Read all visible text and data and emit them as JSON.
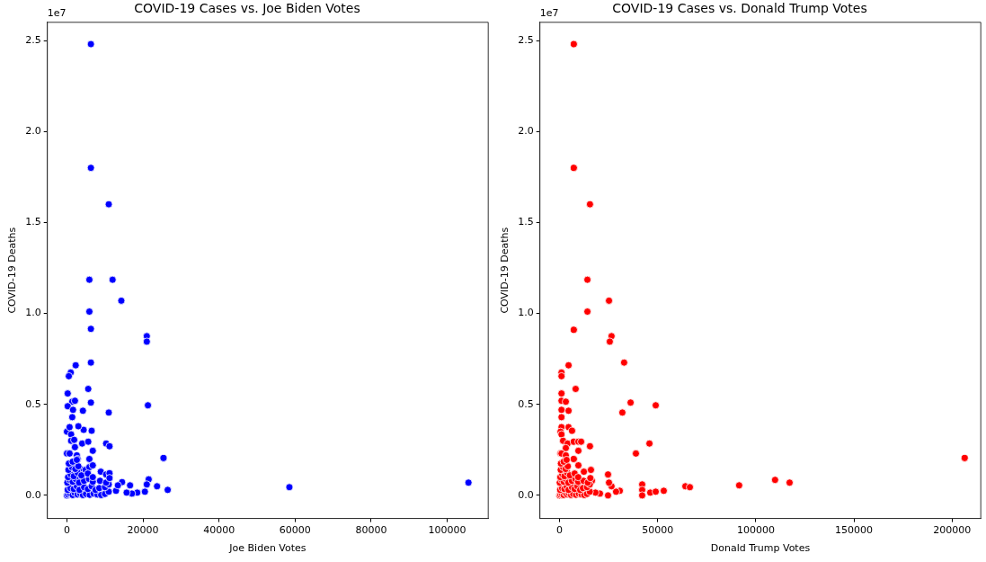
{
  "chart_data": [
    {
      "type": "scatter",
      "title": "COVID-19 Cases vs. Joe Biden Votes",
      "xlabel": "Joe Biden Votes",
      "ylabel": "COVID-19 Deaths",
      "color": "#0000ff",
      "marker": "circle",
      "grid": false,
      "legend": false,
      "annotations": [
        "1e7"
      ],
      "xlim": [
        -5150,
        110800
      ],
      "ylim": [
        -0.127,
        2.6
      ],
      "xticks": [
        0,
        20000,
        40000,
        60000,
        80000,
        100000
      ],
      "yticks": [
        {
          "value": 0,
          "label": "0.0"
        },
        0.5,
        {
          "value": 1,
          "label": "1.0"
        },
        1.5,
        {
          "value": 2,
          "label": "2.0"
        },
        2.5
      ],
      "x": [
        6300,
        6300,
        11000,
        5900,
        12000,
        14300,
        5900,
        6300,
        21000,
        21000,
        6300,
        2300,
        1000,
        500,
        5600,
        200,
        1400,
        2100,
        6300,
        21300,
        200,
        1600,
        4200,
        11000,
        1400,
        6500,
        4400,
        3000,
        0,
        700,
        1100,
        1100,
        1900,
        2100,
        4000,
        5600,
        6800,
        10300,
        11200,
        25400,
        5900,
        0,
        700,
        2600,
        2800,
        3500,
        4900,
        5900,
        6800,
        8900,
        10300,
        11200,
        21500,
        21000,
        23700,
        26500,
        58500,
        105600,
        18500,
        17100,
        15700,
        14500,
        16600,
        12900,
        13400,
        20500,
        0,
        300,
        800,
        1500,
        2000,
        2800,
        3500,
        4200,
        5000,
        6000,
        7000,
        8000,
        9000,
        10000,
        11000,
        200,
        900,
        1800,
        2600,
        3300,
        4500,
        5500,
        6500,
        7500,
        8500,
        10000,
        11000,
        100,
        700,
        1500,
        2300,
        3200,
        4500,
        5800,
        6800,
        8700,
        10300,
        11200,
        300,
        1000,
        1800,
        2800,
        3800,
        5500,
        6800,
        400,
        1300,
        2200,
        3000,
        500,
        1500,
        2600
      ],
      "values": [
        2.48,
        1.8,
        1.6,
        1.185,
        1.185,
        1.07,
        1.01,
        0.915,
        0.875,
        0.845,
        0.73,
        0.715,
        0.675,
        0.655,
        0.585,
        0.56,
        0.515,
        0.52,
        0.51,
        0.495,
        0.49,
        0.47,
        0.465,
        0.455,
        0.43,
        0.355,
        0.36,
        0.38,
        0.35,
        0.375,
        0.335,
        0.3,
        0.305,
        0.265,
        0.285,
        0.295,
        0.245,
        0.285,
        0.27,
        0.205,
        0.2,
        0.23,
        0.23,
        0.22,
        0.2,
        0.145,
        0.14,
        0.155,
        0.165,
        0.13,
        0.115,
        0.122,
        0.088,
        0.06,
        0.05,
        0.03,
        0.045,
        0.07,
        0.015,
        0.01,
        0.015,
        0.073,
        0.055,
        0.025,
        0.055,
        0.02,
        0,
        0.005,
        0.01,
        0.002,
        0.015,
        0.005,
        0.01,
        0.002,
        0.008,
        0.003,
        0.01,
        0.005,
        0.002,
        0.008,
        0.02,
        0.03,
        0.04,
        0.035,
        0.05,
        0.03,
        0.045,
        0.035,
        0.05,
        0.03,
        0.04,
        0.045,
        0.06,
        0.07,
        0.085,
        0.075,
        0.09,
        0.07,
        0.08,
        0.09,
        0.075,
        0.08,
        0.07,
        0.095,
        0.1,
        0.115,
        0.105,
        0.125,
        0.11,
        0.12,
        0.1,
        0.14,
        0.155,
        0.145,
        0.16,
        0.175,
        0.185,
        0.195
      ]
    },
    {
      "type": "scatter",
      "title": "COVID-19 Cases vs. Donald Trump Votes",
      "xlabel": "Donald Trump Votes",
      "ylabel": "COVID-19 Deaths",
      "color": "#ff0000",
      "marker": "circle",
      "grid": false,
      "legend": false,
      "annotations": [
        "1e7"
      ],
      "xlim": [
        -10000,
        214600
      ],
      "ylim": [
        -0.127,
        2.6
      ],
      "xticks": [
        0,
        50000,
        100000,
        150000,
        200000
      ],
      "yticks": [
        {
          "value": 0,
          "label": "0.0"
        },
        0.5,
        {
          "value": 1,
          "label": "1.0"
        },
        1.5,
        {
          "value": 2,
          "label": "2.0"
        },
        2.5
      ],
      "x": [
        7300,
        7300,
        15500,
        14200,
        25200,
        14200,
        7300,
        26500,
        25600,
        32900,
        4600,
        1000,
        1000,
        8200,
        1000,
        36200,
        49000,
        32000,
        1000,
        3200,
        1000,
        4600,
        1000,
        4600,
        6400,
        1000,
        500,
        1000,
        1800,
        4100,
        7300,
        9600,
        11000,
        15500,
        45800,
        38900,
        206400,
        3200,
        9600,
        7300,
        500,
        1000,
        3200,
        9600,
        16000,
        12400,
        24700,
        109800,
        117200,
        91500,
        64100,
        66400,
        42100,
        42100,
        42100,
        46200,
        49000,
        53100,
        30700,
        28800,
        26500,
        25200,
        24700,
        20600,
        18300,
        16500,
        12400,
        0,
        400,
        1100,
        2100,
        2800,
        3900,
        4900,
        5900,
        7000,
        8400,
        9800,
        11200,
        12600,
        14000,
        15400,
        300,
        1300,
        2500,
        3600,
        4600,
        6300,
        7700,
        9100,
        10500,
        11900,
        14000,
        15400,
        100,
        1000,
        2100,
        3200,
        4500,
        6300,
        8100,
        9500,
        12200,
        14400,
        15700,
        400,
        1400,
        2500,
        3900,
        5300,
        7700,
        9500,
        600,
        1800,
        3100,
        4200,
        700,
        2100,
        3600
      ],
      "values": [
        2.48,
        1.8,
        1.6,
        1.185,
        1.07,
        1.01,
        0.91,
        0.875,
        0.845,
        0.73,
        0.715,
        0.675,
        0.655,
        0.585,
        0.56,
        0.51,
        0.495,
        0.455,
        0.52,
        0.515,
        0.47,
        0.465,
        0.43,
        0.375,
        0.355,
        0.375,
        0.35,
        0.335,
        0.3,
        0.285,
        0.295,
        0.295,
        0.295,
        0.27,
        0.285,
        0.23,
        0.205,
        0.26,
        0.245,
        0.2,
        0.23,
        0.23,
        0.22,
        0.165,
        0.14,
        0.13,
        0.115,
        0.085,
        0.07,
        0.055,
        0.05,
        0.045,
        0.06,
        0.03,
        0,
        0.015,
        0.02,
        0.025,
        0.025,
        0.02,
        0.05,
        0.07,
        0,
        0.01,
        0.015,
        0.08,
        0.08,
        0,
        0.005,
        0.01,
        0.002,
        0.015,
        0.005,
        0.01,
        0.002,
        0.008,
        0.003,
        0.01,
        0.005,
        0.002,
        0.008,
        0.02,
        0.03,
        0.04,
        0.035,
        0.05,
        0.03,
        0.045,
        0.035,
        0.05,
        0.03,
        0.04,
        0.045,
        0.06,
        0.07,
        0.085,
        0.075,
        0.09,
        0.07,
        0.08,
        0.09,
        0.075,
        0.08,
        0.07,
        0.095,
        0.1,
        0.115,
        0.105,
        0.125,
        0.11,
        0.12,
        0.1,
        0.14,
        0.155,
        0.145,
        0.16,
        0.175,
        0.185,
        0.195
      ]
    }
  ]
}
